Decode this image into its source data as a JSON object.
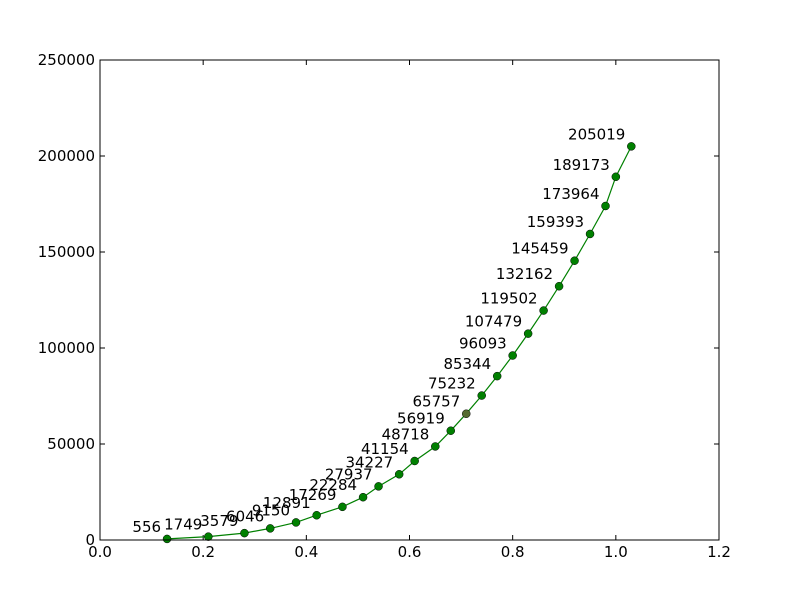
{
  "chart_data": {
    "type": "line",
    "title": "",
    "xlabel": "",
    "ylabel": "",
    "xlim": [
      0.0,
      1.2
    ],
    "ylim": [
      0,
      250000
    ],
    "grid": false,
    "x_ticks": [
      "0.0",
      "0.2",
      "0.4",
      "0.6",
      "0.8",
      "1.0",
      "1.2"
    ],
    "y_ticks": [
      "0",
      "50000",
      "100000",
      "150000",
      "200000",
      "250000"
    ],
    "colors": {
      "line": "#008000",
      "marker_fill": "#008000",
      "marker_edge": "#000000",
      "highlight_marker": "#556b2f"
    },
    "series": [
      {
        "x": [
          0.13,
          0.21,
          0.28,
          0.33,
          0.38,
          0.42,
          0.47,
          0.51,
          0.54,
          0.58,
          0.61,
          0.65,
          0.68,
          0.71,
          0.74,
          0.77,
          0.8,
          0.83,
          0.86,
          0.89,
          0.92,
          0.95,
          0.98,
          1.0,
          1.03
        ],
        "values": [
          556,
          1749,
          3579,
          6046,
          9150,
          12891,
          17269,
          22284,
          27937,
          34227,
          41154,
          48718,
          56919,
          65757,
          75232,
          85344,
          96093,
          107479,
          119502,
          132162,
          145459,
          159393,
          173964,
          189173,
          205019
        ],
        "labels": [
          "556",
          "1749",
          "3579",
          "6046",
          "9150",
          "12891",
          "17269",
          "22284",
          "27937",
          "34227",
          "41154",
          "48718",
          "56919",
          "65757",
          "75232",
          "85344",
          "96093",
          "107479",
          "119502",
          "132162",
          "145459",
          "159393",
          "173964",
          "189173",
          "205019"
        ]
      }
    ]
  }
}
